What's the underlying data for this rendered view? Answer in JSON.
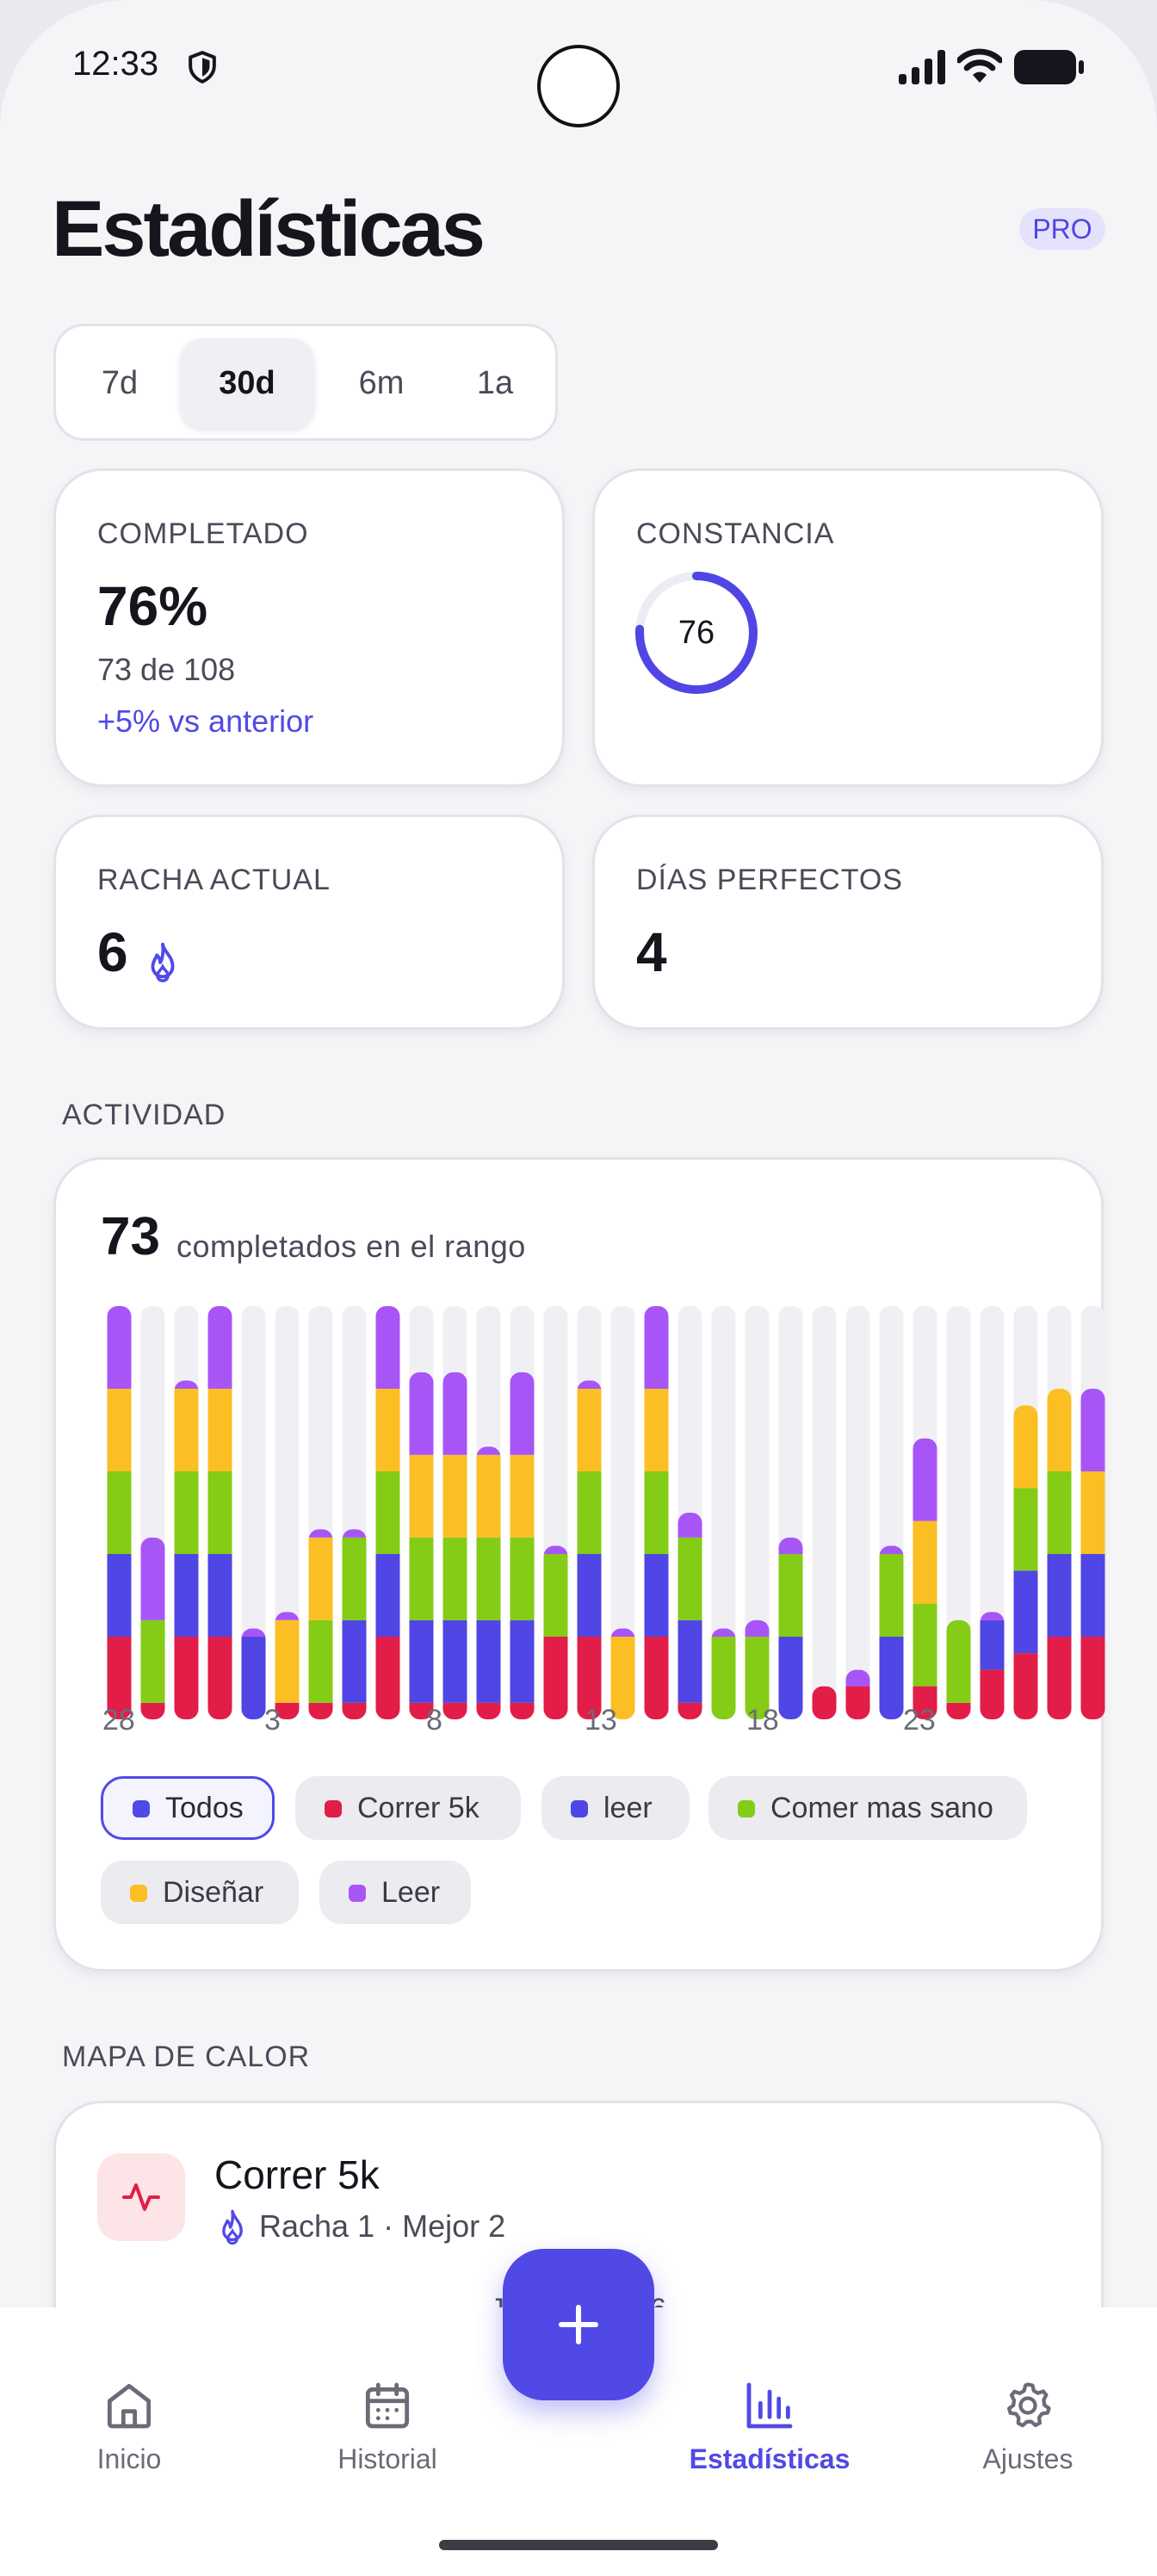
{
  "status_bar": {
    "time": "12:33"
  },
  "header": {
    "title": "Estadísticas",
    "badge": "PRO"
  },
  "range_selector": {
    "options": [
      "7d",
      "30d",
      "6m",
      "1a"
    ],
    "selected": "30d"
  },
  "stats": {
    "completed": {
      "label": "COMPLETADO",
      "value": "76%",
      "detail": "73 de 108",
      "delta": "+5% vs anterior"
    },
    "consistency": {
      "label": "CONSTANCIA",
      "value": "76",
      "ring_fraction": 0.76
    },
    "streak": {
      "label": "RACHA ACTUAL",
      "value": "6"
    },
    "perfect_days": {
      "label": "DÍAS PERFECTOS",
      "value": "4"
    }
  },
  "activity": {
    "section_label": "ACTIVIDAD",
    "total": "73",
    "total_label": "completados en el rango",
    "filters": [
      {
        "label": "Todos",
        "color": "#5149e6",
        "active": true
      },
      {
        "label": "Correr 5k",
        "color": "#e11d48",
        "active": false
      },
      {
        "label": "leer",
        "color": "#4f46e5",
        "active": false
      },
      {
        "label": "Comer mas sano",
        "color": "#84cc16",
        "active": false
      },
      {
        "label": "Diseñar",
        "color": "#fbbf24",
        "active": false
      },
      {
        "label": "Leer",
        "color": "#a855f7",
        "active": false
      }
    ]
  },
  "chart_data": {
    "type": "bar",
    "stacked": true,
    "categories": [
      "28",
      "29",
      "30",
      "1",
      "2",
      "3",
      "4",
      "5",
      "6",
      "7",
      "8",
      "9",
      "10",
      "11",
      "12",
      "13",
      "14",
      "15",
      "16",
      "17",
      "18",
      "19",
      "20",
      "21",
      "22",
      "23",
      "24",
      "25",
      "26",
      "27"
    ],
    "x_tick_labels": [
      "28",
      "3",
      "8",
      "13",
      "18",
      "23"
    ],
    "colors": {
      "Correr 5k": "#e11d48",
      "leer": "#4f46e5",
      "Comer mas sano": "#84cc16",
      "Diseñar": "#fbbf24",
      "Leer": "#a855f7"
    },
    "series": [
      {
        "name": "Correr 5k",
        "values": [
          1,
          0.2,
          1,
          1,
          0,
          0.2,
          0.2,
          0.2,
          1,
          0.2,
          0.2,
          0.2,
          0.2,
          1,
          1,
          0,
          1,
          0.2,
          0,
          0,
          0,
          0.4,
          0.4,
          0,
          0.4,
          0.2,
          0.6,
          0.8,
          1,
          1
        ]
      },
      {
        "name": "leer",
        "values": [
          1,
          0,
          1,
          1,
          1,
          0,
          0,
          1,
          1,
          1,
          1,
          1,
          1,
          0,
          1,
          0,
          1,
          1,
          0,
          0,
          1,
          0,
          0,
          1,
          0,
          0,
          0.6,
          1,
          1,
          1
        ]
      },
      {
        "name": "Comer mas sano",
        "values": [
          1,
          1,
          1,
          1,
          0,
          0,
          1,
          1,
          1,
          1,
          1,
          1,
          1,
          1,
          1,
          0,
          1,
          1,
          1,
          1,
          1,
          0,
          0,
          1,
          1,
          1,
          0,
          1,
          1,
          0
        ]
      },
      {
        "name": "Diseñar",
        "values": [
          1,
          0,
          1,
          1,
          0,
          1,
          1,
          0,
          1,
          1,
          1,
          1,
          1,
          0,
          1,
          1,
          1,
          0,
          0,
          0,
          0,
          0,
          0,
          0,
          1,
          0,
          0,
          1,
          1,
          1
        ]
      },
      {
        "name": "Leer",
        "values": [
          1,
          1,
          0.1,
          1,
          0.1,
          0.1,
          0.1,
          0.1,
          1,
          1,
          1,
          0.1,
          1,
          0.1,
          0.1,
          0.1,
          1,
          0.3,
          0.1,
          0.2,
          0.2,
          0,
          0.2,
          0.1,
          1,
          0,
          0.1,
          0,
          0,
          1
        ]
      }
    ],
    "ylim": [
      0,
      5
    ],
    "grid": false,
    "legend": "bottom"
  },
  "heatmap": {
    "section_label": "MAPA DE CALOR",
    "habit_name": "Correr 5k",
    "habit_stats": "Racha 1 · Mejor 2",
    "months": [
      "J",
      "6"
    ]
  },
  "bottom_nav": {
    "items": [
      {
        "label": "Inicio",
        "icon": "home-icon"
      },
      {
        "label": "Historial",
        "icon": "calendar-icon"
      },
      {
        "label": "Estadísticas",
        "icon": "bar-chart-icon"
      },
      {
        "label": "Ajustes",
        "icon": "gear-icon"
      }
    ],
    "active": "Estadísticas"
  }
}
